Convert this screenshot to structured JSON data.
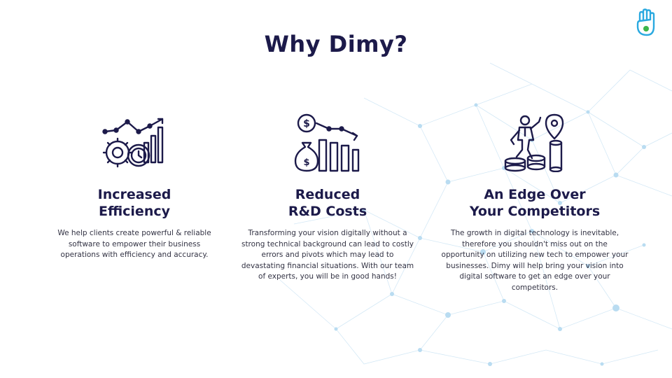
{
  "title": "Why Dimy?",
  "colors": {
    "navy": "#1c1a4a",
    "accent_blue": "#2aa9e0",
    "accent_green": "#3bb54a"
  },
  "features": [
    {
      "icon": "efficiency-chart-gear-clock-icon",
      "heading_line1": "Increased",
      "heading_line2": "Efficiency",
      "body": "We help clients create powerful & reliable software to empower their business operations with efficiency and accuracy."
    },
    {
      "icon": "money-bag-declining-chart-icon",
      "heading_line1": "Reduced",
      "heading_line2": "R&D Costs",
      "body": "Transforming your vision digitally without a strong technical background can lead to costly errors and pivots which may lead to devastating financial situations. With our team of experts, you will be in good hands!"
    },
    {
      "icon": "businessman-coins-location-pin-icon",
      "heading_line1": "An Edge Over",
      "heading_line2": "Your Competitors",
      "body": "The growth in digital technology is inevitable, therefore you shouldn't miss out on the opportunity on utilizing new tech to empower your businesses. Dimy will help bring your vision into digital software to get an edge over your competitors."
    }
  ]
}
